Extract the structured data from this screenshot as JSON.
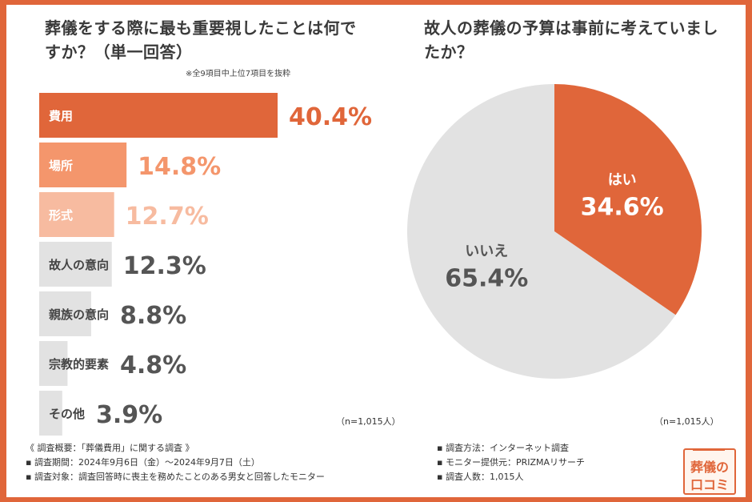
{
  "left": {
    "title": "葬儀をする際に最も重要視したことは何ですか？（単一回答）",
    "note": "※全9項目中上位7項目を抜粋",
    "n": "（n=1,015人）"
  },
  "right": {
    "title": "故人の葬儀の予算は事前に考えていましたか？",
    "n": "（n=1,015人）"
  },
  "colors": {
    "frame": "#e0663a",
    "primary": "#e0663a",
    "secondary": "#f4966c",
    "tertiary": "#f7bba0",
    "gray": "#e2e2e2",
    "value_gray": "#555555"
  },
  "chart_data": [
    {
      "type": "bar",
      "orientation": "horizontal",
      "title": "葬儀をする際に最も重要視したことは何ですか？（単一回答）",
      "categories": [
        "費用",
        "場所",
        "形式",
        "故人の意向",
        "親族の意向",
        "宗教的要素",
        "その他"
      ],
      "values": [
        40.4,
        14.8,
        12.7,
        12.3,
        8.8,
        4.8,
        3.9
      ],
      "value_labels": [
        "40.4%",
        "14.8%",
        "12.7%",
        "12.3%",
        "8.8%",
        "4.8%",
        "3.9%"
      ],
      "unit": "%",
      "xlim": [
        0,
        40.4
      ]
    },
    {
      "type": "pie",
      "title": "故人の葬儀の予算は事前に考えていましたか？",
      "labels": [
        "はい",
        "いいえ"
      ],
      "values": [
        34.6,
        65.4
      ],
      "value_labels": [
        "34.6%",
        "65.4%"
      ]
    }
  ],
  "footer": {
    "left": [
      "《 調査概要：「葬儀費用」に関する調査 》",
      "▪ 調査期間：2024年9月6日（金）〜2024年9月7日（土）",
      "▪ 調査対象：調査回答時に喪主を務めたことのある男女と回答したモニター"
    ],
    "right": [
      "▪ 調査方法：インターネット調査",
      "▪ モニター提供元：PRIZMAリサーチ",
      "▪ 調査人数：1,015人"
    ]
  },
  "logo": {
    "line1": "葬儀の",
    "line2": "口コミ"
  }
}
